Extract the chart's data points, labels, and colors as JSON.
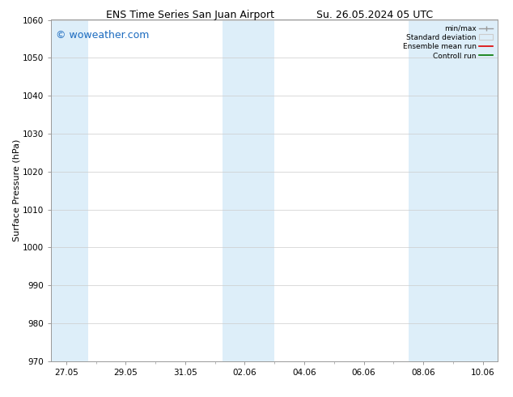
{
  "title_left": "ENS Time Series San Juan Airport",
  "title_right": "Su. 26.05.2024 05 UTC",
  "ylabel": "Surface Pressure (hPa)",
  "ylim": [
    970,
    1060
  ],
  "yticks": [
    970,
    980,
    990,
    1000,
    1010,
    1020,
    1030,
    1040,
    1050,
    1060
  ],
  "xtick_labels": [
    "27.05",
    "29.05",
    "31.05",
    "02.06",
    "04.06",
    "06.06",
    "08.06",
    "10.06"
  ],
  "xtick_positions": [
    0,
    2,
    4,
    6,
    8,
    10,
    12,
    14
  ],
  "xlim": [
    -0.5,
    14.5
  ],
  "shaded_bands": [
    {
      "x_start": -0.5,
      "x_end": 0.75,
      "color": "#ddeef9"
    },
    {
      "x_start": 5.25,
      "x_end": 7.0,
      "color": "#ddeef9"
    },
    {
      "x_start": 11.5,
      "x_end": 14.5,
      "color": "#ddeef9"
    }
  ],
  "watermark": "© woweather.com",
  "watermark_color": "#1a6abf",
  "watermark_fontsize": 9,
  "legend_labels": [
    "min/max",
    "Standard deviation",
    "Ensemble mean run",
    "Controll run"
  ],
  "legend_line_colors": [
    "#999999",
    "#cccccc",
    "#dd0000",
    "#007700"
  ],
  "bg_color": "#ffffff",
  "plot_bg_color": "#ffffff",
  "grid_color": "#cccccc",
  "spine_color": "#999999",
  "title_fontsize": 9,
  "axis_label_fontsize": 8,
  "tick_fontsize": 7.5
}
